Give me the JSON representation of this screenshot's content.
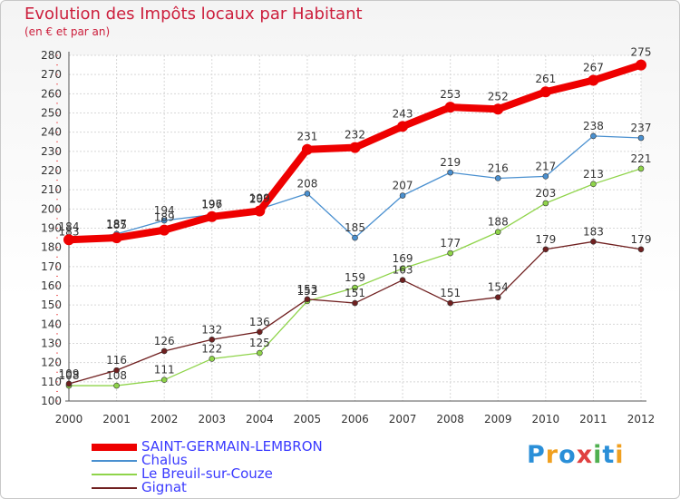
{
  "title": "Evolution des Impôts locaux par Habitant",
  "subtitle": "(en € et par an)",
  "logo": {
    "letters": [
      {
        "t": "P",
        "cls": "c1"
      },
      {
        "t": "r",
        "cls": "c2"
      },
      {
        "t": "o",
        "cls": "c1"
      },
      {
        "t": "x",
        "cls": "c3"
      },
      {
        "t": "i",
        "cls": "c4"
      },
      {
        "t": "t",
        "cls": "c1"
      },
      {
        "t": "i",
        "cls": "c2"
      }
    ]
  },
  "chart_data": {
    "type": "line",
    "title": "Evolution des Impôts locaux par Habitant",
    "subtitle": "(en € et par an)",
    "xlabel": "",
    "ylabel": "",
    "x": [
      "2000",
      "2001",
      "2002",
      "2003",
      "2004",
      "2005",
      "2006",
      "2007",
      "2008",
      "2009",
      "2010",
      "2011",
      "2012"
    ],
    "ylim": [
      100,
      280
    ],
    "yticks": [
      100,
      110,
      120,
      130,
      140,
      150,
      160,
      170,
      180,
      190,
      200,
      210,
      220,
      230,
      240,
      250,
      260,
      270,
      280
    ],
    "grid": true,
    "legend_position": "bottom-left",
    "series": [
      {
        "name": "SAINT-GERMAIN-LEMBRON",
        "color": "#ee0000",
        "emphasis": true,
        "values": [
          184,
          185,
          189,
          196,
          199,
          231,
          232,
          243,
          253,
          252,
          261,
          267,
          275
        ]
      },
      {
        "name": "Chalus",
        "color": "#4a90d0",
        "emphasis": false,
        "values": [
          183,
          187,
          194,
          197,
          200,
          208,
          185,
          207,
          219,
          216,
          217,
          238,
          237
        ]
      },
      {
        "name": "Le Breuil-sur-Couze",
        "color": "#8fd44a",
        "emphasis": false,
        "values": [
          108,
          108,
          111,
          122,
          125,
          152,
          159,
          169,
          177,
          188,
          203,
          213,
          221
        ]
      },
      {
        "name": "Gignat",
        "color": "#702020",
        "emphasis": false,
        "values": [
          109,
          116,
          126,
          132,
          136,
          153,
          151,
          163,
          151,
          154,
          179,
          183,
          179
        ]
      }
    ]
  }
}
